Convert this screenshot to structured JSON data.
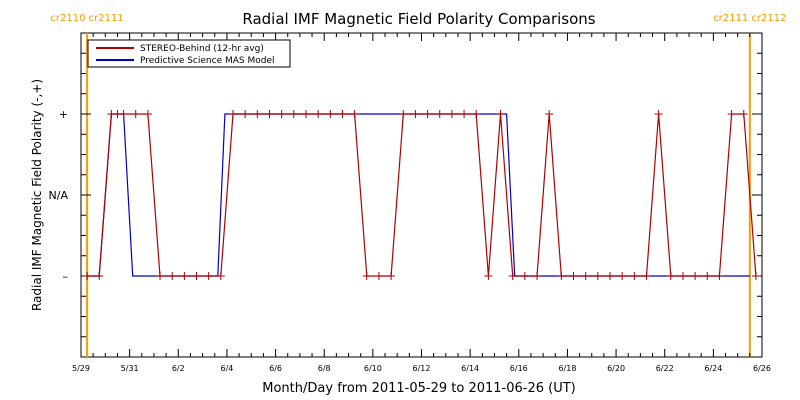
{
  "chart_data": {
    "type": "line",
    "title": "Radial IMF Magnetic Field Polarity Comparisons",
    "xlabel": "Month/Day from 2011-05-29 to 2011-06-26 (UT)",
    "ylabel": "Radial IMF Magnetic Field Polarity (-,+)",
    "xlim": [
      "2011-05-29",
      "2011-06-26"
    ],
    "x_ticks": [
      "5/29",
      "5/31",
      "6/2",
      "6/4",
      "6/6",
      "6/8",
      "6/10",
      "6/12",
      "6/14",
      "6/16",
      "6/18",
      "6/20",
      "6/22",
      "6/24",
      "6/26"
    ],
    "y_categories": [
      "–",
      "N/A",
      "+"
    ],
    "y_values": [
      -1,
      0,
      1
    ],
    "ylim": [
      -2,
      2
    ],
    "legend_placement": "top-left",
    "rotation_markers": [
      {
        "date": "2011-05-29 06:00",
        "labels": [
          "cr2110",
          "cr2111"
        ],
        "color": "#ff9900"
      },
      {
        "date": "2011-06-25 12:00",
        "labels": [
          "cr2111",
          "cr2112"
        ],
        "color": "#ff9900"
      }
    ],
    "series": [
      {
        "name": "STEREO-Behind (12-hr avg)",
        "color": "#b00000",
        "marker": "+",
        "x": [
          "2011-05-29 06:00",
          "2011-05-29 18:00",
          "2011-05-30 06:00",
          "2011-05-30 12:00",
          "2011-05-30 18:00",
          "2011-05-31 06:00",
          "2011-05-31 18:00",
          "2011-06-01 06:00",
          "2011-06-01 18:00",
          "2011-06-02 06:00",
          "2011-06-02 18:00",
          "2011-06-03 06:00",
          "2011-06-03 18:00",
          "2011-06-04 06:00",
          "2011-06-04 18:00",
          "2011-06-05 06:00",
          "2011-06-05 18:00",
          "2011-06-06 06:00",
          "2011-06-06 18:00",
          "2011-06-07 06:00",
          "2011-06-07 18:00",
          "2011-06-08 06:00",
          "2011-06-08 18:00",
          "2011-06-09 06:00",
          "2011-06-09 18:00",
          "2011-06-10 06:00",
          "2011-06-10 18:00",
          "2011-06-11 06:00",
          "2011-06-11 18:00",
          "2011-06-12 06:00",
          "2011-06-12 18:00",
          "2011-06-13 06:00",
          "2011-06-13 18:00",
          "2011-06-14 06:00",
          "2011-06-14 18:00",
          "2011-06-15 06:00",
          "2011-06-15 18:00",
          "2011-06-16 06:00",
          "2011-06-16 18:00",
          "2011-06-17 06:00",
          "2011-06-17 18:00",
          "2011-06-18 06:00",
          "2011-06-18 18:00",
          "2011-06-19 06:00",
          "2011-06-19 18:00",
          "2011-06-20 06:00",
          "2011-06-20 18:00",
          "2011-06-21 06:00",
          "2011-06-21 18:00",
          "2011-06-22 06:00",
          "2011-06-22 18:00",
          "2011-06-23 06:00",
          "2011-06-23 18:00",
          "2011-06-24 06:00",
          "2011-06-24 18:00",
          "2011-06-25 06:00",
          "2011-06-25 18:00"
        ],
        "y": [
          -1,
          -1,
          1,
          1,
          1,
          1,
          1,
          -1,
          -1,
          -1,
          -1,
          -1,
          -1,
          1,
          1,
          1,
          1,
          1,
          1,
          1,
          1,
          1,
          1,
          1,
          -1,
          -1,
          -1,
          1,
          1,
          1,
          1,
          1,
          1,
          1,
          -1,
          1,
          -1,
          -1,
          -1,
          1,
          -1,
          -1,
          -1,
          -1,
          -1,
          -1,
          -1,
          -1,
          1,
          -1,
          -1,
          -1,
          -1,
          -1,
          1,
          1,
          -1
        ]
      },
      {
        "name": "Predictive Science MAS Model",
        "color": "#0000cc",
        "x": [
          "2011-05-29 06:00",
          "2011-05-29 18:00",
          "2011-05-30 06:00",
          "2011-05-30 18:00",
          "2011-05-31 03:00",
          "2011-06-03 15:00",
          "2011-06-03 22:00",
          "2011-06-15 12:00",
          "2011-06-15 20:00",
          "2011-06-25 12:00"
        ],
        "y": [
          -1,
          -1,
          1,
          1,
          -1,
          -1,
          1,
          1,
          -1,
          -1
        ]
      }
    ]
  }
}
